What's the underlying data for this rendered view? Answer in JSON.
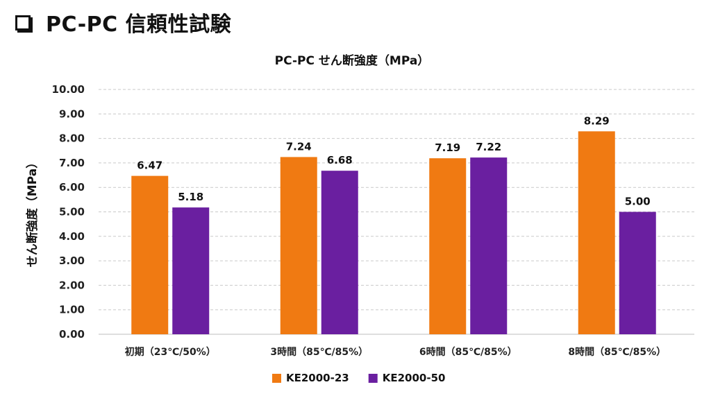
{
  "page": {
    "title": "PC-PC 信頼性試験"
  },
  "chart_data": {
    "type": "bar",
    "title": "PC-PC せん断強度（MPa）",
    "ylabel": "せん断強度（MPa）",
    "xlabel": "",
    "ylim": [
      0,
      10
    ],
    "yticks": [
      "0.00",
      "1.00",
      "2.00",
      "3.00",
      "4.00",
      "5.00",
      "6.00",
      "7.00",
      "8.00",
      "9.00",
      "10.00"
    ],
    "grid": true,
    "legend_position": "bottom",
    "categories": [
      "初期（23℃/50%）",
      "3時間（85℃/85%）",
      "6時間（85℃/85%）",
      "8時間（85℃/85%）"
    ],
    "series": [
      {
        "name": "KE2000-23",
        "color": "#F07A12",
        "values": [
          6.47,
          7.24,
          7.19,
          8.29
        ],
        "labels": [
          "6.47",
          "7.24",
          "7.19",
          "8.29"
        ]
      },
      {
        "name": "KE2000-50",
        "color": "#6A1FA0",
        "values": [
          5.18,
          6.68,
          7.22,
          5.0
        ],
        "labels": [
          "5.18",
          "6.68",
          "7.22",
          "5.00"
        ]
      }
    ]
  }
}
